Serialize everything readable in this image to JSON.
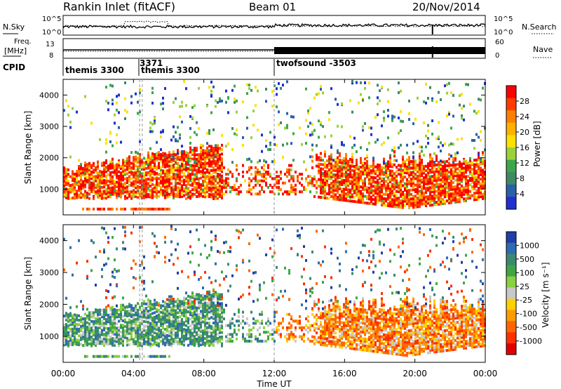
{
  "header": {
    "radar": "Rankin Inlet (fitACF)",
    "beam": "Beam 01",
    "date": "20/Nov/2014"
  },
  "noise_panel": {
    "left_label": "N.Sky",
    "right_label": "N.Search",
    "left_ticks": [
      "10^5",
      "10^0"
    ],
    "right_ticks": [
      "10^5",
      "10^0"
    ]
  },
  "freq_panel": {
    "left_label_1": "Freq.",
    "left_label_2": "[MHz]",
    "right_label": "Nave",
    "left_ticks": [
      "13",
      "8"
    ],
    "right_ticks": [
      "60",
      "0"
    ]
  },
  "cpid_panel": {
    "label": "CPID",
    "entries": [
      {
        "text": "themis 3300",
        "hour": 0.0
      },
      {
        "text": "3371",
        "hour": 4.35
      },
      {
        "text": "themis 3300",
        "hour": 4.5
      },
      {
        "text": "twofsound -3503",
        "hour": 12.0
      }
    ]
  },
  "chart_data": [
    {
      "type": "heatmap",
      "panel": "power",
      "ylabel": "Slant Range [km]",
      "yticks": [
        "1000",
        "2000",
        "3000",
        "4000"
      ],
      "ylim": [
        180,
        4500
      ],
      "colorbar_label": "Power [dB]",
      "colorbar_ticks": [
        "28",
        "24",
        "20",
        "16",
        "12",
        "8",
        "4"
      ],
      "colors": [
        "#ff0000",
        "#ff3b00",
        "#ff8000",
        "#ffb000",
        "#ffe000",
        "#9ad23c",
        "#3ea64a",
        "#3c8a66",
        "#2a60a8",
        "#1f2fd0"
      ]
    },
    {
      "type": "heatmap",
      "panel": "velocity",
      "ylabel": "Slant Range [km]",
      "yticks": [
        "1000",
        "2000",
        "3000",
        "4000"
      ],
      "ylim": [
        180,
        4500
      ],
      "colorbar_label": "Velocity [m s⁻¹]",
      "colorbar_ticks": [
        "1000",
        "500",
        "100",
        "25",
        "-25",
        "-100",
        "-500",
        "-1000"
      ],
      "colors": [
        "#1f3fa8",
        "#2e6bb0",
        "#3b8a70",
        "#3fa645",
        "#8ad040",
        "#c8c8c8",
        "#ffd000",
        "#ff9a00",
        "#ff6600",
        "#ff3000",
        "#e00000"
      ]
    }
  ],
  "xaxis": {
    "ticks": [
      "00:00",
      "04:00",
      "08:00",
      "12:00",
      "16:00",
      "20:00",
      "00:00"
    ],
    "label": "Time UT"
  }
}
